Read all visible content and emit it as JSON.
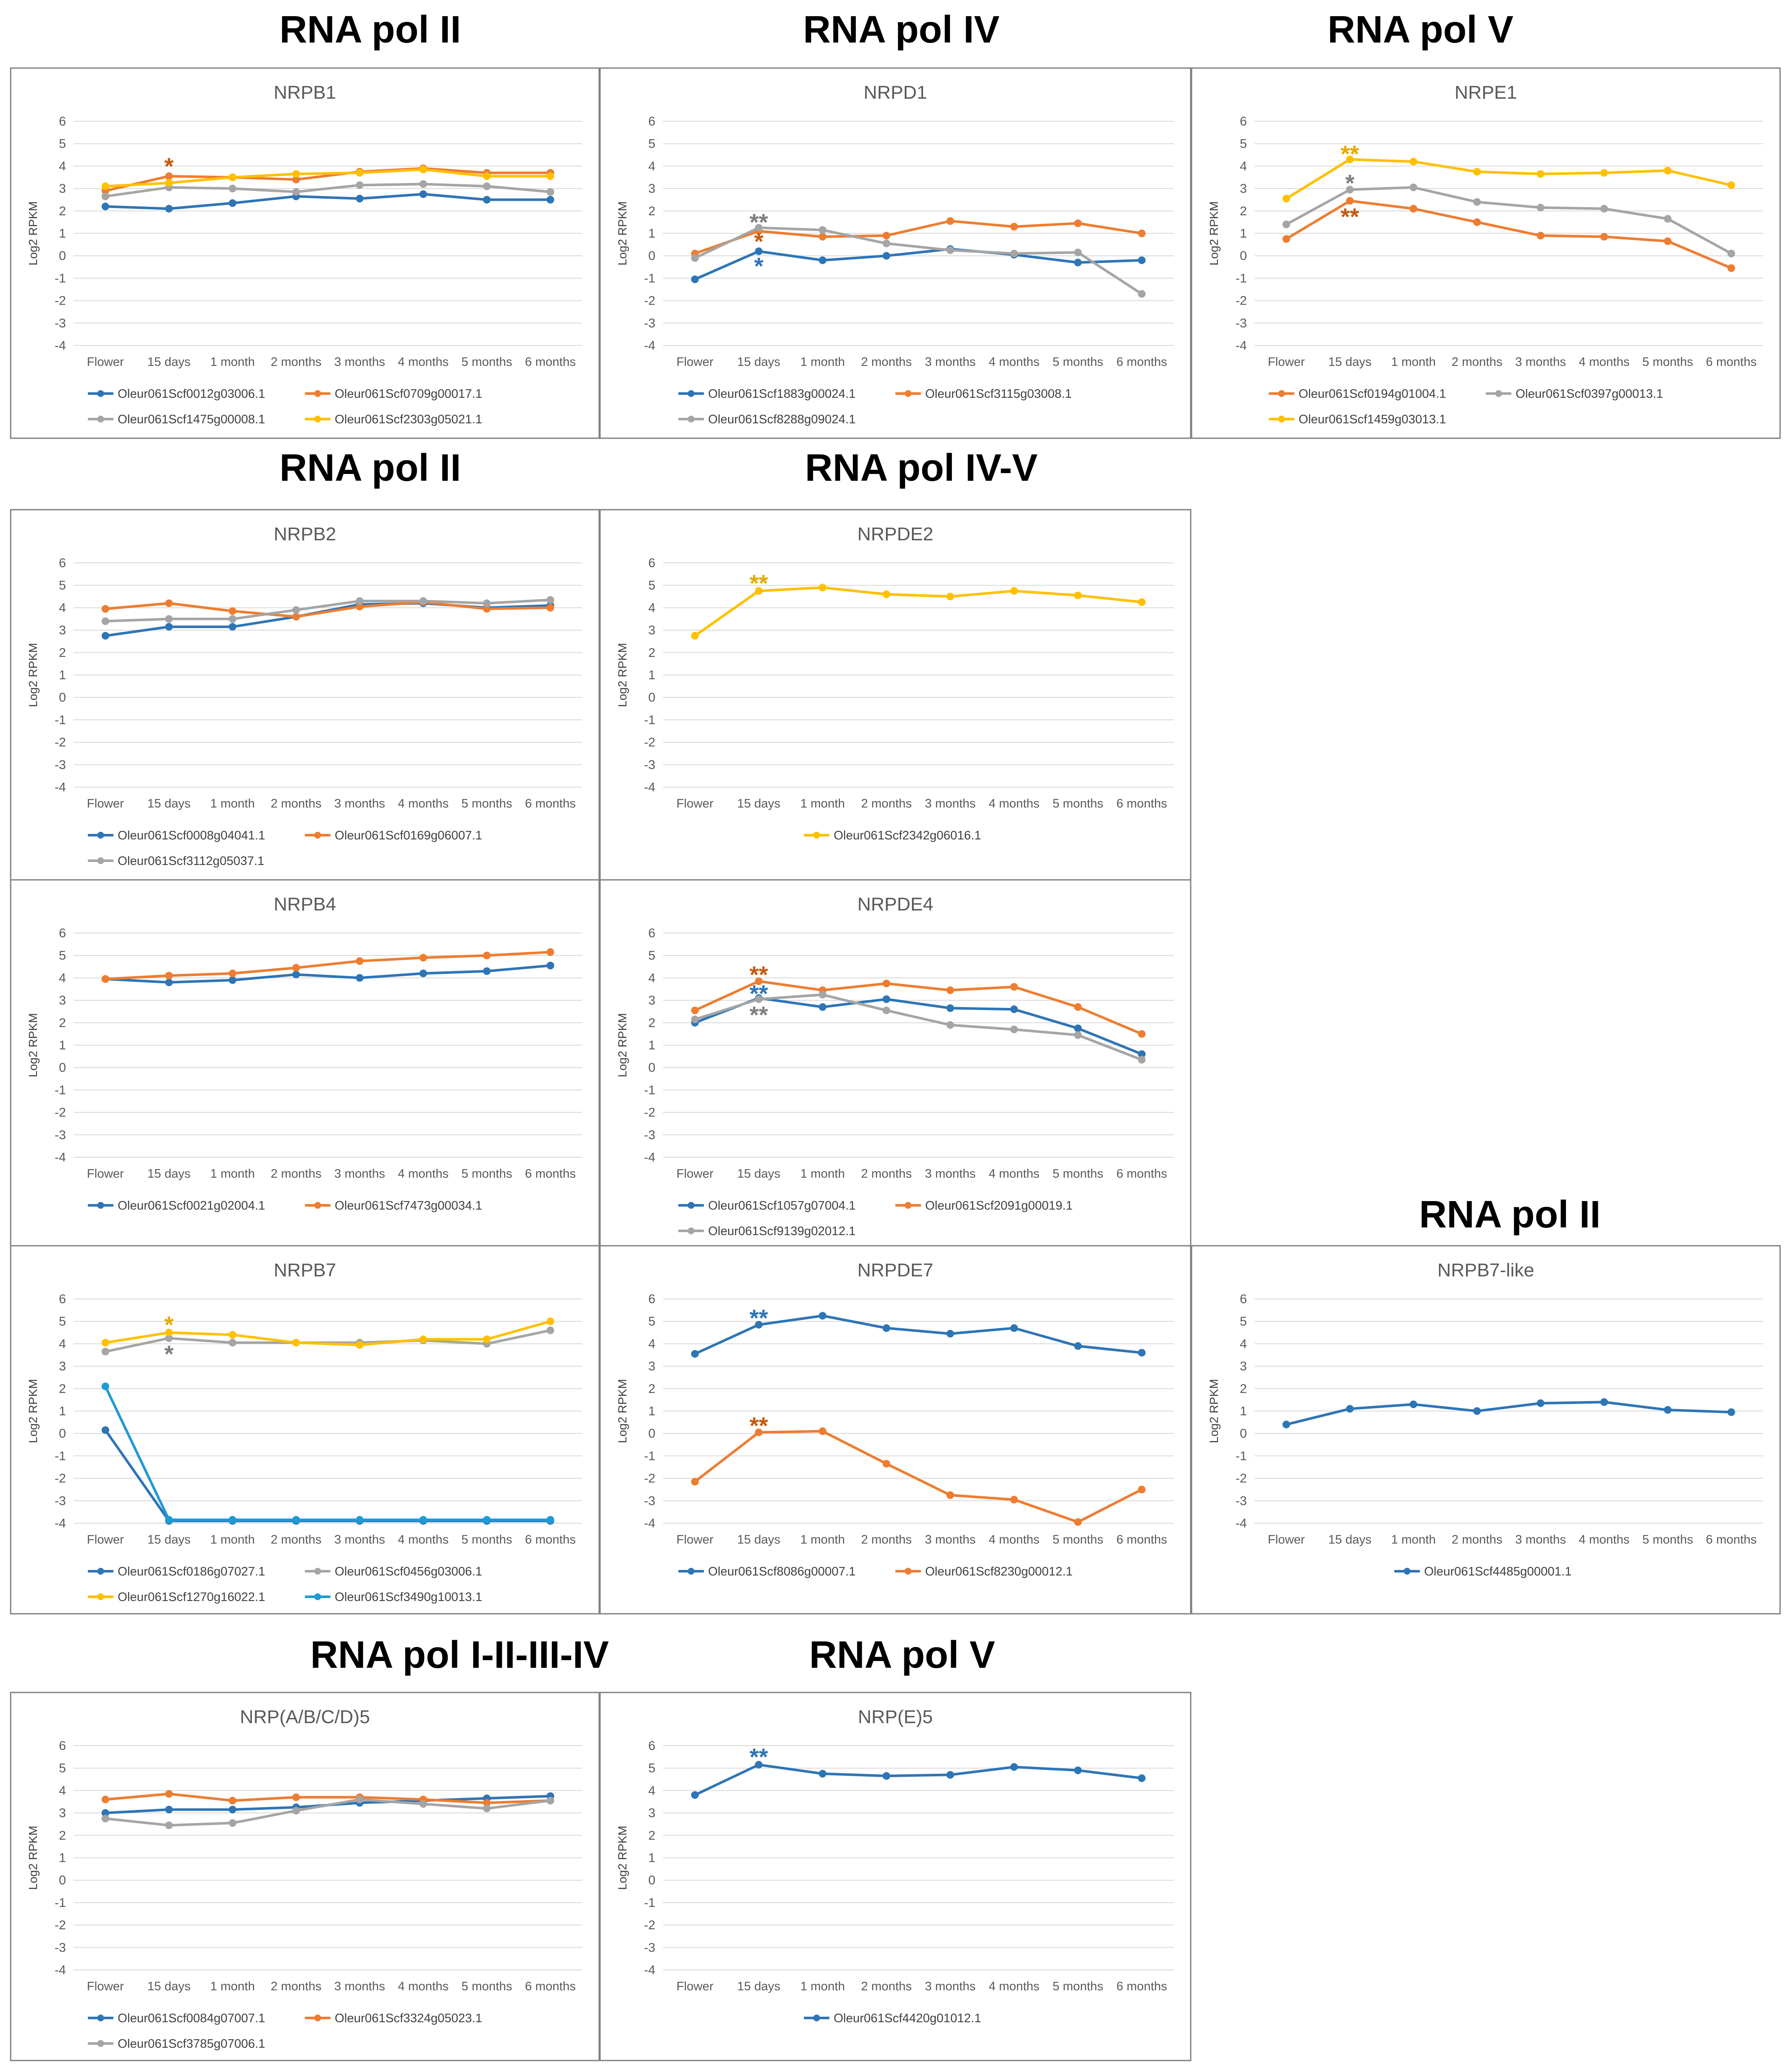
{
  "headings": [
    {
      "text": "RNA pol II"
    },
    {
      "text": "RNA pol IV"
    },
    {
      "text": "RNA pol V"
    },
    {
      "text": "RNA pol II"
    },
    {
      "text": "RNA pol IV-V"
    },
    {
      "text": "RNA pol II"
    },
    {
      "text": "RNA pol I-II-III-IV"
    },
    {
      "text": "RNA pol V"
    }
  ],
  "colors": {
    "blue": "#2E75B6",
    "orange": "#ED7D31",
    "gray": "#A5A5A5",
    "yellow": "#FFC000",
    "teal": "#1F9BD3",
    "darkorange": "#C55A11",
    "darkgray": "#7F7F7F",
    "darkblue": "#2E75B6",
    "gold": "#E6A800"
  },
  "chart_data": [
    {
      "type": "line",
      "title": "NRPB1",
      "ylabel": "Log2 RPKM",
      "ylim": [
        -4,
        6
      ],
      "categories": [
        "Flower",
        "15 days",
        "1 month",
        "2 months",
        "3 months",
        "4 months",
        "5 months",
        "6 months"
      ],
      "legend_cols": 2,
      "series": [
        {
          "name": "Oleur061Scf0012g03006.1",
          "color": "#2E75B6",
          "values": [
            2.2,
            2.1,
            2.35,
            2.65,
            2.55,
            2.75,
            2.5,
            2.5
          ]
        },
        {
          "name": "Oleur061Scf0709g00017.1",
          "color": "#ED7D31",
          "values": [
            2.9,
            3.55,
            3.5,
            3.4,
            3.75,
            3.9,
            3.7,
            3.7
          ]
        },
        {
          "name": "Oleur061Scf1475g00008.1",
          "color": "#A5A5A5",
          "values": [
            2.65,
            3.05,
            3.0,
            2.85,
            3.15,
            3.2,
            3.1,
            2.85
          ]
        },
        {
          "name": "Oleur061Scf2303g05021.1",
          "color": "#FFC000",
          "values": [
            3.1,
            3.25,
            3.5,
            3.65,
            3.7,
            3.85,
            3.55,
            3.55
          ]
        }
      ],
      "annotations": [
        {
          "text": "*",
          "x": "15 days",
          "y": 4.05,
          "color": "#C55A11"
        }
      ]
    },
    {
      "type": "line",
      "title": "NRPD1",
      "ylabel": "Log2 RPKM",
      "ylim": [
        -4,
        6
      ],
      "categories": [
        "Flower",
        "15 days",
        "1 month",
        "2 months",
        "3 months",
        "4 months",
        "5 months",
        "6 months"
      ],
      "legend_cols": 2,
      "series": [
        {
          "name": "Oleur061Scf1883g00024.1",
          "color": "#2E75B6",
          "values": [
            -1.05,
            0.2,
            -0.2,
            0.0,
            0.3,
            0.05,
            -0.3,
            -0.2
          ]
        },
        {
          "name": "Oleur061Scf3115g03008.1",
          "color": "#ED7D31",
          "values": [
            0.1,
            1.1,
            0.85,
            0.9,
            1.55,
            1.3,
            1.45,
            1.0
          ]
        },
        {
          "name": "Oleur061Scf8288g09024.1",
          "color": "#A5A5A5",
          "values": [
            -0.1,
            1.25,
            1.15,
            0.55,
            0.25,
            0.1,
            0.15,
            -1.7
          ]
        }
      ],
      "annotations": [
        {
          "text": "**",
          "x": "15 days",
          "y": 1.55,
          "color": "#7F7F7F"
        },
        {
          "text": "*",
          "x": "15 days",
          "y": 0.7,
          "color": "#C55A11"
        },
        {
          "text": "*",
          "x": "15 days",
          "y": -0.4,
          "color": "#2E75B6"
        }
      ]
    },
    {
      "type": "line",
      "title": "NRPE1",
      "ylabel": "Log2 RPKM",
      "ylim": [
        -4,
        6
      ],
      "categories": [
        "Flower",
        "15 days",
        "1 month",
        "2 months",
        "3 months",
        "4 months",
        "5 months",
        "6 months"
      ],
      "legend_cols": 2,
      "series": [
        {
          "name": "Oleur061Scf0194g01004.1",
          "color": "#ED7D31",
          "values": [
            0.75,
            2.45,
            2.1,
            1.5,
            0.9,
            0.85,
            0.65,
            -0.55
          ]
        },
        {
          "name": "Oleur061Scf0397g00013.1",
          "color": "#A5A5A5",
          "values": [
            1.4,
            2.95,
            3.05,
            2.4,
            2.15,
            2.1,
            1.65,
            0.1
          ]
        },
        {
          "name": "Oleur061Scf1459g03013.1",
          "color": "#FFC000",
          "values": [
            2.55,
            4.3,
            4.2,
            3.75,
            3.65,
            3.7,
            3.8,
            3.15
          ]
        }
      ],
      "annotations": [
        {
          "text": "**",
          "x": "15 days",
          "y": 4.6,
          "color": "#E6A800"
        },
        {
          "text": "*",
          "x": "15 days",
          "y": 3.3,
          "color": "#7F7F7F"
        },
        {
          "text": "**",
          "x": "15 days",
          "y": 1.8,
          "color": "#C55A11"
        }
      ]
    },
    {
      "type": "line",
      "title": "NRPB2",
      "ylabel": "Log2 RPKM",
      "ylim": [
        -4,
        6
      ],
      "categories": [
        "Flower",
        "15 days",
        "1 month",
        "2 months",
        "3 months",
        "4 months",
        "5 months",
        "6 months"
      ],
      "legend_cols": 2,
      "series": [
        {
          "name": "Oleur061Scf0008g04041.1",
          "color": "#2E75B6",
          "values": [
            2.75,
            3.15,
            3.15,
            3.6,
            4.15,
            4.2,
            4.0,
            4.1
          ]
        },
        {
          "name": "Oleur061Scf0169g06007.1",
          "color": "#ED7D31",
          "values": [
            3.95,
            4.2,
            3.85,
            3.6,
            4.05,
            4.25,
            3.95,
            4.0
          ]
        },
        {
          "name": "Oleur061Scf3112g05037.1",
          "color": "#A5A5A5",
          "values": [
            3.4,
            3.5,
            3.5,
            3.9,
            4.3,
            4.3,
            4.2,
            4.35
          ]
        }
      ],
      "annotations": []
    },
    {
      "type": "line",
      "title": "NRPDE2",
      "ylabel": "Log2 RPKM",
      "ylim": [
        -4,
        6
      ],
      "categories": [
        "Flower",
        "15 days",
        "1 month",
        "2 months",
        "3 months",
        "4 months",
        "5 months",
        "6 months"
      ],
      "legend_cols": 1,
      "series": [
        {
          "name": "Oleur061Scf2342g06016.1",
          "color": "#FFC000",
          "values": [
            2.75,
            4.75,
            4.9,
            4.6,
            4.5,
            4.75,
            4.55,
            4.25
          ]
        }
      ],
      "annotations": [
        {
          "text": "**",
          "x": "15 days",
          "y": 5.15,
          "color": "#E6A800"
        }
      ]
    },
    {
      "type": "line",
      "title": "NRPB4",
      "ylabel": "Log2 RPKM",
      "ylim": [
        -4,
        6
      ],
      "categories": [
        "Flower",
        "15 days",
        "1 month",
        "2 months",
        "3 months",
        "4 months",
        "5 months",
        "6 months"
      ],
      "legend_cols": 2,
      "series": [
        {
          "name": "Oleur061Scf0021g02004.1",
          "color": "#2E75B6",
          "values": [
            3.95,
            3.8,
            3.9,
            4.15,
            4.0,
            4.2,
            4.3,
            4.55
          ]
        },
        {
          "name": "Oleur061Scf7473g00034.1",
          "color": "#ED7D31",
          "values": [
            3.95,
            4.1,
            4.2,
            4.45,
            4.75,
            4.9,
            5.0,
            5.15
          ]
        }
      ],
      "annotations": []
    },
    {
      "type": "line",
      "title": "NRPDE4",
      "ylabel": "Log2 RPKM",
      "ylim": [
        -4,
        6
      ],
      "categories": [
        "Flower",
        "15 days",
        "1 month",
        "2 months",
        "3 months",
        "4 months",
        "5 months",
        "6 months"
      ],
      "legend_cols": 2,
      "series": [
        {
          "name": "Oleur061Scf1057g07004.1",
          "color": "#2E75B6",
          "values": [
            2.0,
            3.1,
            2.7,
            3.05,
            2.65,
            2.6,
            1.75,
            0.6
          ]
        },
        {
          "name": "Oleur061Scf2091g00019.1",
          "color": "#ED7D31",
          "values": [
            2.55,
            3.85,
            3.45,
            3.75,
            3.45,
            3.6,
            2.7,
            1.5
          ]
        },
        {
          "name": "Oleur061Scf9139g02012.1",
          "color": "#A5A5A5",
          "values": [
            2.15,
            3.05,
            3.25,
            2.55,
            1.9,
            1.7,
            1.45,
            0.35
          ]
        }
      ],
      "annotations": [
        {
          "text": "**",
          "x": "15 days",
          "y": 4.2,
          "color": "#C55A11"
        },
        {
          "text": "**",
          "x": "15 days",
          "y": 3.35,
          "color": "#2E75B6"
        },
        {
          "text": "**",
          "x": "15 days",
          "y": 2.4,
          "color": "#7F7F7F"
        }
      ]
    },
    {
      "type": "line",
      "title": "NRPB7",
      "ylabel": "Log2 RPKM",
      "ylim": [
        -4,
        6
      ],
      "categories": [
        "Flower",
        "15 days",
        "1 month",
        "2 months",
        "3 months",
        "4 months",
        "5 months",
        "6 months"
      ],
      "legend_cols": 2,
      "series": [
        {
          "name": "Oleur061Scf0186g07027.1",
          "color": "#2E75B6",
          "values": [
            0.15,
            -3.9,
            -3.9,
            -3.9,
            -3.9,
            -3.9,
            -3.9,
            -3.9
          ]
        },
        {
          "name": "Oleur061Scf0456g03006.1",
          "color": "#A5A5A5",
          "values": [
            3.65,
            4.25,
            4.05,
            4.05,
            4.05,
            4.15,
            4.0,
            4.6
          ]
        },
        {
          "name": "Oleur061Scf1270g16022.1",
          "color": "#FFC000",
          "values": [
            4.05,
            4.5,
            4.4,
            4.05,
            3.95,
            4.2,
            4.2,
            5.0
          ]
        },
        {
          "name": "Oleur061Scf3490g10013.1",
          "color": "#1F9BD3",
          "values": [
            2.1,
            -3.85,
            -3.85,
            -3.85,
            -3.85,
            -3.85,
            -3.85,
            -3.85
          ]
        }
      ],
      "annotations": [
        {
          "text": "*",
          "x": "15 days",
          "y": 4.9,
          "color": "#E6A800"
        },
        {
          "text": "*",
          "x": "15 days",
          "y": 3.6,
          "color": "#7F7F7F"
        }
      ]
    },
    {
      "type": "line",
      "title": "NRPDE7",
      "ylabel": "Log2 RPKM",
      "ylim": [
        -4,
        6
      ],
      "categories": [
        "Flower",
        "15 days",
        "1 month",
        "2 months",
        "3 months",
        "4 months",
        "5 months",
        "6 months"
      ],
      "legend_cols": 2,
      "series": [
        {
          "name": "Oleur061Scf8086g00007.1",
          "color": "#2E75B6",
          "values": [
            3.55,
            4.85,
            5.25,
            4.7,
            4.45,
            4.7,
            3.9,
            3.6
          ]
        },
        {
          "name": "Oleur061Scf8230g00012.1",
          "color": "#ED7D31",
          "values": [
            -2.15,
            0.05,
            0.1,
            -1.35,
            -2.75,
            -2.95,
            -3.95,
            -2.5
          ]
        }
      ],
      "annotations": [
        {
          "text": "**",
          "x": "15 days",
          "y": 5.2,
          "color": "#2E75B6"
        },
        {
          "text": "**",
          "x": "15 days",
          "y": 0.4,
          "color": "#C55A11"
        }
      ]
    },
    {
      "type": "line",
      "title": "NRPB7-like",
      "ylabel": "Log2 RPKM",
      "ylim": [
        -4,
        6
      ],
      "categories": [
        "Flower",
        "15 days",
        "1 month",
        "2 months",
        "3 months",
        "4 months",
        "5 months",
        "6 months"
      ],
      "legend_cols": 1,
      "series": [
        {
          "name": "Oleur061Scf4485g00001.1",
          "color": "#2E75B6",
          "values": [
            0.4,
            1.1,
            1.3,
            1.0,
            1.35,
            1.4,
            1.05,
            0.95
          ]
        }
      ],
      "annotations": []
    },
    {
      "type": "line",
      "title": "NRP(A/B/C/D)5",
      "ylabel": "Log2 RPKM",
      "ylim": [
        -4,
        6
      ],
      "categories": [
        "Flower",
        "15 days",
        "1 month",
        "2 months",
        "3 months",
        "4 months",
        "5 months",
        "6 months"
      ],
      "legend_cols": 2,
      "series": [
        {
          "name": "Oleur061Scf0084g07007.1",
          "color": "#2E75B6",
          "values": [
            3.0,
            3.15,
            3.15,
            3.25,
            3.45,
            3.55,
            3.65,
            3.75
          ]
        },
        {
          "name": "Oleur061Scf3324g05023.1",
          "color": "#ED7D31",
          "values": [
            3.6,
            3.85,
            3.55,
            3.7,
            3.7,
            3.6,
            3.45,
            3.55
          ]
        },
        {
          "name": "Oleur061Scf3785g07006.1",
          "color": "#A5A5A5",
          "values": [
            2.75,
            2.45,
            2.55,
            3.1,
            3.6,
            3.4,
            3.2,
            3.55
          ]
        }
      ],
      "annotations": []
    },
    {
      "type": "line",
      "title": "NRP(E)5",
      "ylabel": "Log2 RPKM",
      "ylim": [
        -4,
        6
      ],
      "categories": [
        "Flower",
        "15 days",
        "1 month",
        "2 months",
        "3 months",
        "4 months",
        "5 months",
        "6 months"
      ],
      "legend_cols": 1,
      "series": [
        {
          "name": "Oleur061Scf4420g01012.1",
          "color": "#2E75B6",
          "values": [
            3.8,
            5.15,
            4.75,
            4.65,
            4.7,
            5.05,
            4.9,
            4.55
          ]
        }
      ],
      "annotations": [
        {
          "text": "**",
          "x": "15 days",
          "y": 5.55,
          "color": "#2E75B6"
        }
      ]
    }
  ]
}
